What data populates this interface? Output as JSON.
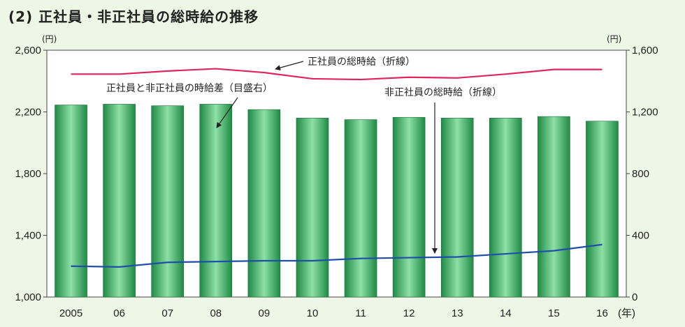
{
  "title": "(2) 正社員・非正社員の総時給の推移",
  "chart_data": {
    "type": "bar",
    "categories": [
      "2005",
      "06",
      "07",
      "08",
      "09",
      "10",
      "11",
      "12",
      "13",
      "14",
      "15",
      "16"
    ],
    "x_unit": "(年)",
    "left_axis": {
      "unit": "(円)",
      "range": [
        1000,
        2600
      ],
      "ticks": [
        1000,
        1400,
        1800,
        2200,
        2600
      ]
    },
    "right_axis": {
      "unit": "(円)",
      "range": [
        0,
        1600
      ],
      "ticks": [
        0,
        400,
        800,
        1200,
        1600
      ]
    },
    "grid": false,
    "series": [
      {
        "name": "正社員と非正社員の時給差（目盛右）",
        "type": "bar",
        "axis": "right",
        "color": "#3aa860",
        "values": [
          1245,
          1250,
          1240,
          1250,
          1215,
          1160,
          1150,
          1165,
          1160,
          1160,
          1170,
          1140
        ]
      },
      {
        "name": "正社員の総時給（折線）",
        "type": "line",
        "axis": "left",
        "color": "#e0245e",
        "values": [
          2445,
          2445,
          2465,
          2480,
          2455,
          2415,
          2410,
          2425,
          2420,
          2445,
          2475,
          2475
        ]
      },
      {
        "name": "非正社員の総時給（折線）",
        "type": "line",
        "axis": "left",
        "color": "#1f4fa8",
        "values": [
          1200,
          1195,
          1225,
          1230,
          1235,
          1235,
          1250,
          1255,
          1260,
          1280,
          1300,
          1340
        ]
      }
    ]
  }
}
